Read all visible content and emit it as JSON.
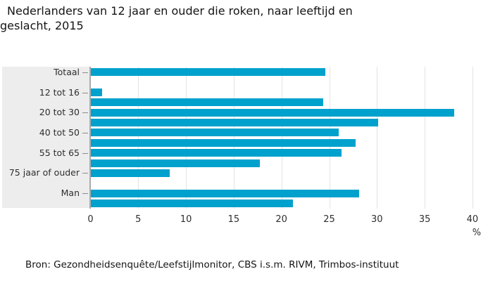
{
  "header": {
    "title_lines": [
      "Nederlanders van 12 jaar en ouder die roken, naar leeftijd en",
      "geslacht, 2015"
    ]
  },
  "chart_data": {
    "type": "bar",
    "orientation": "horizontal",
    "title": "Nederlanders van 12 jaar en ouder die roken, naar leeftijd en geslacht, 2015",
    "xlabel": "%",
    "ylabel": "",
    "xlim": [
      0,
      40
    ],
    "xticks": [
      0,
      5,
      10,
      15,
      20,
      25,
      30,
      35,
      40
    ],
    "grid": true,
    "legend": false,
    "bar_color": "#00a1cd",
    "rows": [
      {
        "label": "Totaal",
        "value": 24.6
      },
      {
        "spacer": true
      },
      {
        "label": "12 tot 16",
        "value": 1.2
      },
      {
        "label": "",
        "value": 24.4
      },
      {
        "label": "20 tot 30",
        "value": 38.1
      },
      {
        "label": "",
        "value": 30.1
      },
      {
        "label": "40 tot 50",
        "value": 26.0
      },
      {
        "label": "",
        "value": 27.8
      },
      {
        "label": "55 tot 65",
        "value": 26.3
      },
      {
        "label": "",
        "value": 17.7
      },
      {
        "label": "75 jaar of ouder",
        "value": 8.3
      },
      {
        "spacer": true
      },
      {
        "label": "Man",
        "value": 28.1
      },
      {
        "label": "",
        "value": 21.2
      }
    ]
  },
  "footer": {
    "source": "Bron: Gezondheidsenquête/Leefstijlmonitor, CBS i.s.m. RIVM, Trimbos-instituut"
  },
  "colors": {
    "bar": "#00a1cd",
    "label_band": "#ededed",
    "gridline": "#e3e3e3",
    "axis_line": "#ababab",
    "tick_dash": "#8c8c8c",
    "text": "#2e2e2e",
    "title": "#141414"
  }
}
